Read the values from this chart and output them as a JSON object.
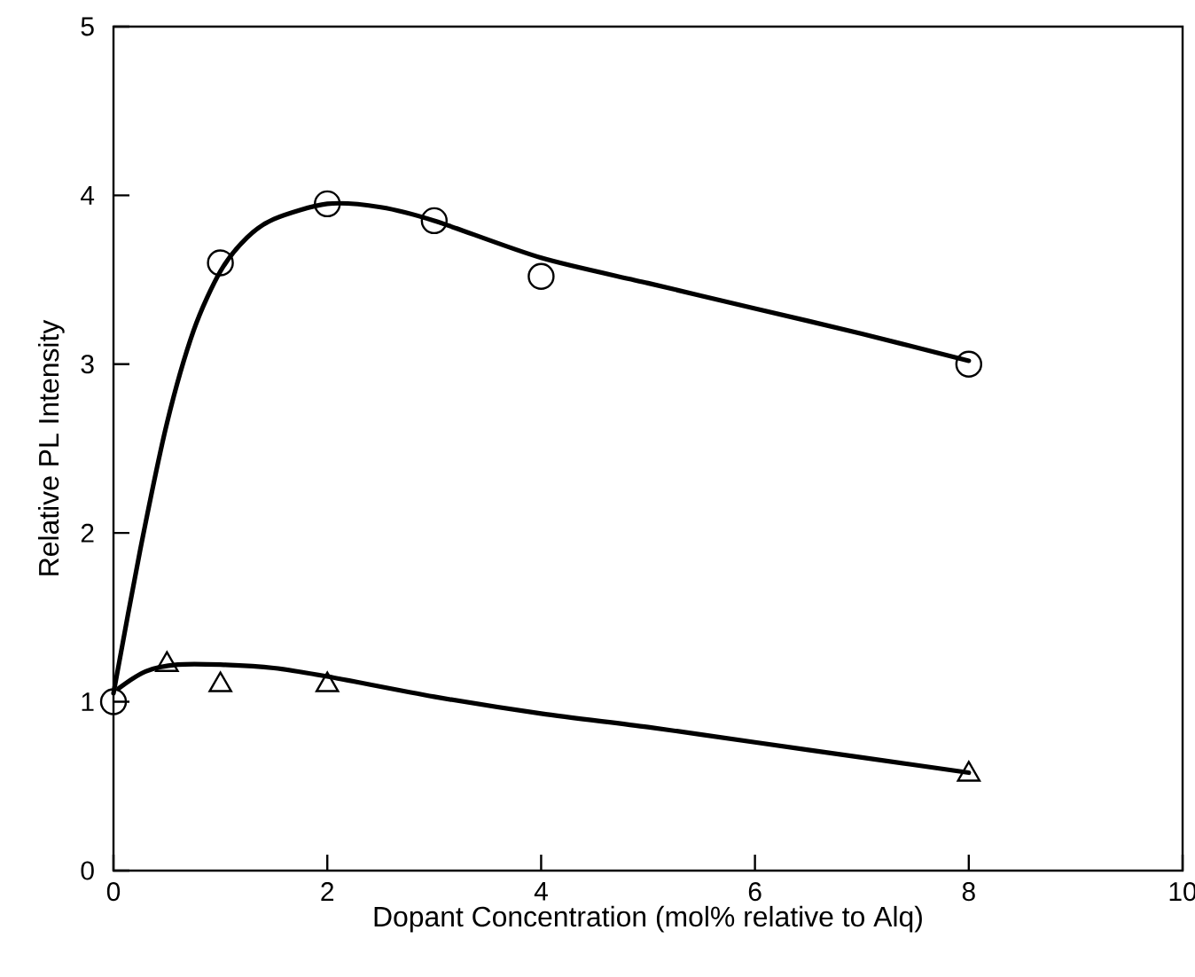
{
  "chart_data": {
    "type": "scatter",
    "xlabel": "Dopant Concentration (mol% relative to Alq)",
    "ylabel": "Relative PL Intensity",
    "xlim": [
      0,
      10
    ],
    "ylim": [
      0,
      5
    ],
    "xticks": [
      0,
      2,
      4,
      6,
      8,
      10
    ],
    "yticks": [
      0,
      1,
      2,
      3,
      4,
      5
    ],
    "series": [
      {
        "type": "line",
        "marker": "none",
        "color": "#000000",
        "x": [
          0,
          0.25,
          0.5,
          0.75,
          1,
          1.25,
          1.5,
          2,
          2.5,
          3,
          4,
          5,
          6,
          7,
          8
        ],
        "values": [
          1.05,
          1.9,
          2.65,
          3.2,
          3.55,
          3.75,
          3.86,
          3.95,
          3.93,
          3.85,
          3.63,
          3.48,
          3.33,
          3.18,
          3.02
        ]
      },
      {
        "type": "line",
        "marker": "none",
        "color": "#000000",
        "x": [
          0.05,
          0.3,
          0.6,
          1,
          1.5,
          2,
          3,
          4,
          5,
          6,
          7,
          8
        ],
        "values": [
          1.08,
          1.18,
          1.22,
          1.22,
          1.2,
          1.15,
          1.03,
          0.93,
          0.85,
          0.76,
          0.67,
          0.58
        ]
      },
      {
        "marker": "circle",
        "color": "#000000",
        "x": [
          0,
          1,
          2,
          3,
          4,
          8
        ],
        "values": [
          1,
          3.6,
          3.95,
          3.85,
          3.52,
          3.0
        ]
      },
      {
        "marker": "triangle",
        "color": "#000000",
        "x": [
          0.5,
          1,
          2,
          8
        ],
        "values": [
          1.22,
          1.1,
          1.1,
          0.57
        ]
      }
    ]
  }
}
